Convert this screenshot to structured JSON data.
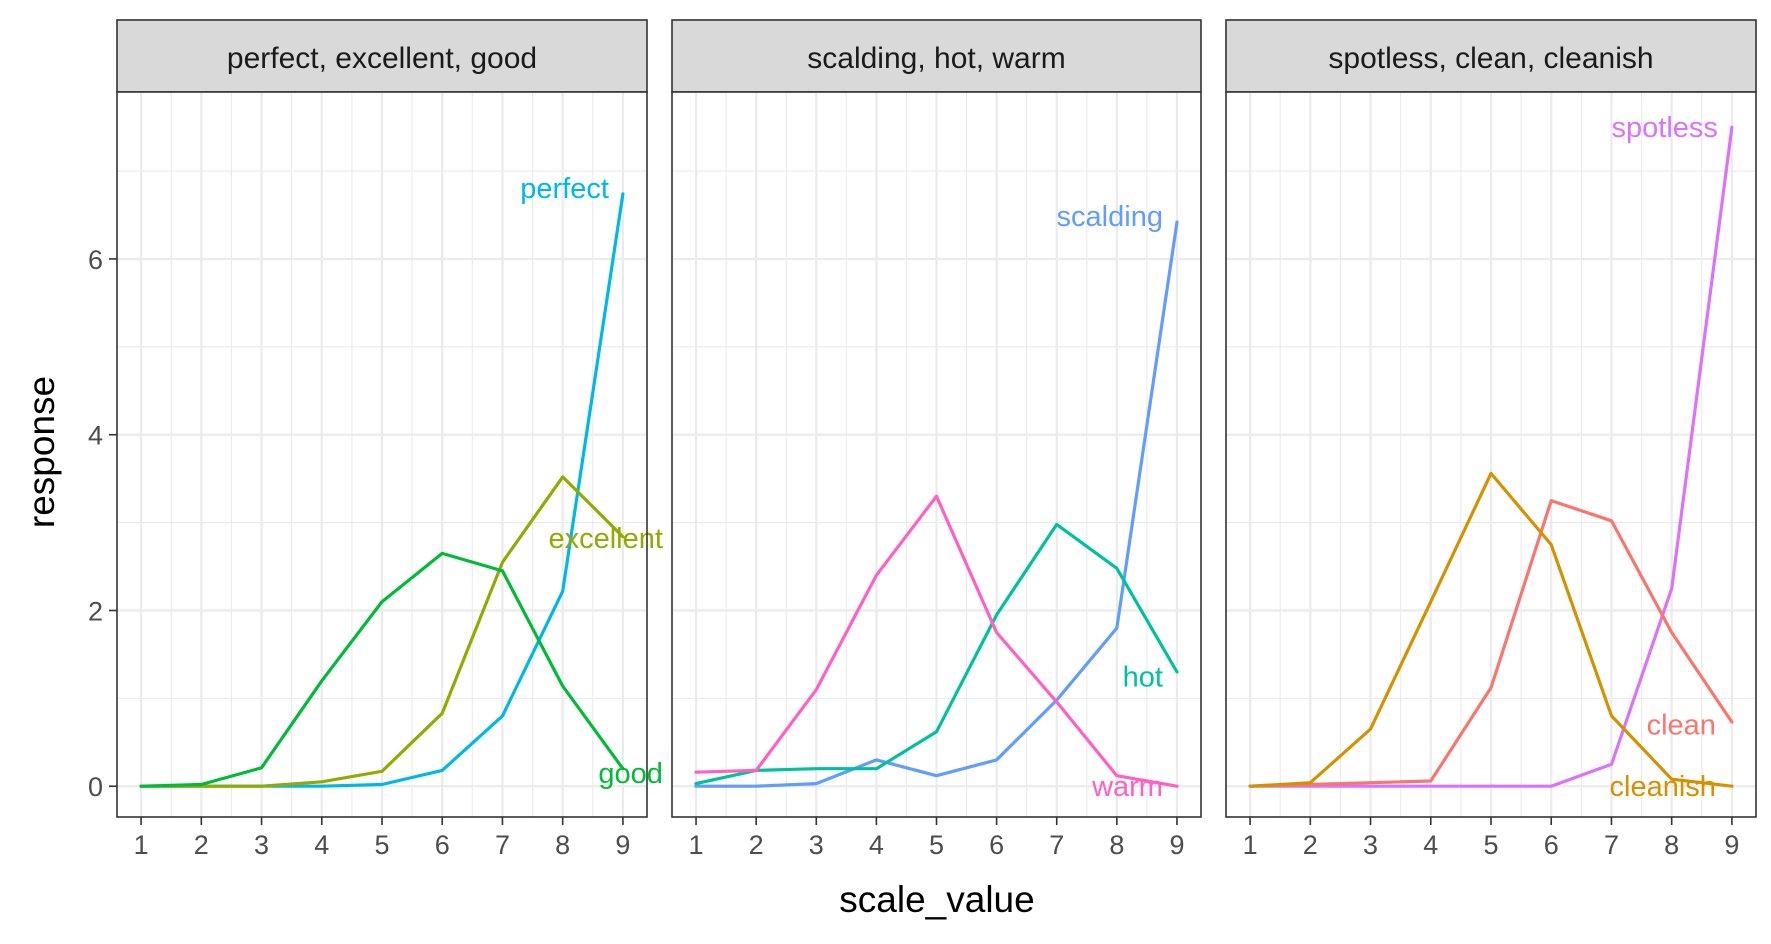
{
  "chart_data": {
    "type": "line",
    "xlabel": "scale_value",
    "ylabel": "response",
    "x": [
      1,
      2,
      3,
      4,
      5,
      6,
      7,
      8,
      9
    ],
    "xlim": [
      0.6,
      9.4
    ],
    "ylim": [
      -0.35,
      7.9
    ],
    "y_ticks": [
      0,
      2,
      4,
      6
    ],
    "grid": true,
    "facets": [
      {
        "strip": "perfect, excellent, good",
        "series": [
          {
            "name": "perfect",
            "color": "#00B8E5",
            "values": [
              0,
              0,
              0,
              0,
              0.02,
              0.18,
              0.8,
              2.22,
              6.74
            ]
          },
          {
            "name": "excellent",
            "color": "#93AA00",
            "values": [
              0,
              0,
              0,
              0.05,
              0.17,
              0.83,
              2.55,
              3.52,
              2.84
            ]
          },
          {
            "name": "good",
            "color": "#00BA38",
            "values": [
              0,
              0.02,
              0.21,
              1.2,
              2.1,
              2.65,
              2.45,
              1.14,
              0.2
            ]
          }
        ]
      },
      {
        "strip": "scalding, hot, warm",
        "series": [
          {
            "name": "scalding",
            "color": "#619CFF",
            "values": [
              0,
              0,
              0.03,
              0.3,
              0.12,
              0.3,
              0.98,
              1.8,
              6.42
            ]
          },
          {
            "name": "hot",
            "color": "#00C19F",
            "values": [
              0.03,
              0.18,
              0.2,
              0.2,
              0.62,
              1.95,
              2.98,
              2.48,
              1.3
            ]
          },
          {
            "name": "warm",
            "color": "#FF61C3",
            "values": [
              0.16,
              0.18,
              1.1,
              2.4,
              3.3,
              1.75,
              0.96,
              0.12,
              0
            ]
          }
        ]
      },
      {
        "strip": "spotless, clean, cleanish",
        "series": [
          {
            "name": "spotless",
            "color": "#DB72FB",
            "values": [
              0,
              0,
              0,
              0,
              0,
              0,
              0.25,
              2.25,
              7.5
            ]
          },
          {
            "name": "clean",
            "color": "#F8766D",
            "values": [
              0,
              0.02,
              0.04,
              0.06,
              1.12,
              3.25,
              3.02,
              1.75,
              0.73
            ]
          },
          {
            "name": "cleanish",
            "color": "#D39200",
            "values": [
              0,
              0.04,
              0.65,
              2.1,
              3.56,
              2.75,
              0.8,
              0.08,
              0
            ]
          }
        ]
      }
    ]
  }
}
